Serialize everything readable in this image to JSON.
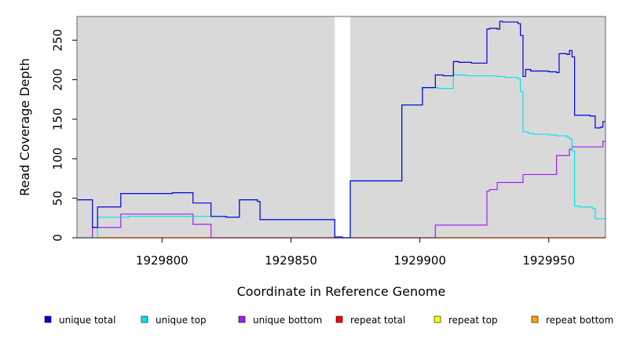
{
  "chart_data": {
    "type": "line",
    "title": "",
    "xlabel": "Coordinate in Reference Genome",
    "ylabel": "Read Coverage Depth",
    "xlim": [
      1929767,
      1929972
    ],
    "ylim": [
      0,
      280
    ],
    "x_ticks": [
      1929800,
      1929850,
      1929900,
      1929950
    ],
    "x_tick_labels": [
      "1929800",
      "1929850",
      "1929900",
      "1929950"
    ],
    "y_ticks": [
      0,
      50,
      100,
      150,
      200,
      250
    ],
    "y_tick_labels": [
      "0",
      "50",
      "100",
      "150",
      "200",
      "250"
    ],
    "grid": false,
    "legend_placement": "bottom",
    "background_color": "#d9d9d9",
    "gap_region": {
      "start": 1929867,
      "end": 1929873,
      "color": "#ffffff"
    },
    "series": [
      {
        "name": "unique total",
        "color": "#0000dd",
        "points": [
          [
            1929767,
            48
          ],
          [
            1929773,
            48
          ],
          [
            1929773,
            13
          ],
          [
            1929775,
            13
          ],
          [
            1929775,
            39
          ],
          [
            1929784,
            39
          ],
          [
            1929784,
            56
          ],
          [
            1929804,
            56
          ],
          [
            1929804,
            57
          ],
          [
            1929812,
            57
          ],
          [
            1929812,
            44
          ],
          [
            1929819,
            44
          ],
          [
            1929819,
            27
          ],
          [
            1929825,
            27
          ],
          [
            1929825,
            26
          ],
          [
            1929830,
            26
          ],
          [
            1929830,
            48
          ],
          [
            1929837,
            48
          ],
          [
            1929837,
            46
          ],
          [
            1929838,
            46
          ],
          [
            1929838,
            23
          ],
          [
            1929867,
            23
          ],
          [
            1929867,
            1
          ],
          [
            1929870,
            1
          ],
          [
            1929870,
            0
          ],
          [
            1929873,
            0
          ],
          [
            1929873,
            72
          ],
          [
            1929893,
            72
          ],
          [
            1929893,
            168
          ],
          [
            1929901,
            168
          ],
          [
            1929901,
            190
          ],
          [
            1929906,
            190
          ],
          [
            1929906,
            206
          ],
          [
            1929909,
            206
          ],
          [
            1929909,
            205
          ],
          [
            1929913,
            205
          ],
          [
            1929913,
            223
          ],
          [
            1929915,
            223
          ],
          [
            1929915,
            222
          ],
          [
            1929920,
            222
          ],
          [
            1929920,
            221
          ],
          [
            1929926,
            221
          ],
          [
            1929926,
            264
          ],
          [
            1929927,
            264
          ],
          [
            1929927,
            265
          ],
          [
            1929930,
            265
          ],
          [
            1929930,
            264
          ],
          [
            1929931,
            264
          ],
          [
            1929931,
            274
          ],
          [
            1929932,
            274
          ],
          [
            1929932,
            273
          ],
          [
            1929938,
            273
          ],
          [
            1929938,
            271
          ],
          [
            1929939,
            271
          ],
          [
            1929939,
            256
          ],
          [
            1929940,
            256
          ],
          [
            1929940,
            204
          ],
          [
            1929941,
            204
          ],
          [
            1929941,
            213
          ],
          [
            1929943,
            213
          ],
          [
            1929943,
            211
          ],
          [
            1929950,
            211
          ],
          [
            1929950,
            210
          ],
          [
            1929953,
            210
          ],
          [
            1929953,
            209
          ],
          [
            1929954,
            209
          ],
          [
            1929954,
            233
          ],
          [
            1929957,
            233
          ],
          [
            1929957,
            232
          ],
          [
            1929958,
            232
          ],
          [
            1929958,
            237
          ],
          [
            1929959,
            237
          ],
          [
            1929959,
            229
          ],
          [
            1929960,
            229
          ],
          [
            1929960,
            155
          ],
          [
            1929966,
            155
          ],
          [
            1929966,
            154
          ],
          [
            1929968,
            154
          ],
          [
            1929968,
            139
          ],
          [
            1929970,
            139
          ],
          [
            1929970,
            140
          ],
          [
            1929971,
            140
          ],
          [
            1929971,
            147
          ],
          [
            1929972,
            147
          ]
        ]
      },
      {
        "name": "unique top",
        "color": "#00e5ee",
        "points": [
          [
            1929767,
            0
          ],
          [
            1929775,
            0
          ],
          [
            1929775,
            26
          ],
          [
            1929787,
            26
          ],
          [
            1929787,
            27
          ],
          [
            1929824,
            27
          ],
          [
            1929824,
            26
          ],
          [
            1929830,
            26
          ],
          [
            1929830,
            48
          ],
          [
            1929837,
            48
          ],
          [
            1929837,
            46
          ],
          [
            1929838,
            46
          ],
          [
            1929838,
            23
          ],
          [
            1929867,
            23
          ],
          [
            1929867,
            1
          ],
          [
            1929870,
            1
          ],
          [
            1929870,
            0
          ],
          [
            1929873,
            0
          ],
          [
            1929873,
            72
          ],
          [
            1929893,
            72
          ],
          [
            1929893,
            168
          ],
          [
            1929901,
            168
          ],
          [
            1929901,
            190
          ],
          [
            1929907,
            190
          ],
          [
            1929907,
            189
          ],
          [
            1929913,
            189
          ],
          [
            1929913,
            206
          ],
          [
            1929918,
            206
          ],
          [
            1929918,
            205
          ],
          [
            1929930,
            205
          ],
          [
            1929930,
            204
          ],
          [
            1929933,
            204
          ],
          [
            1929933,
            203
          ],
          [
            1929938,
            203
          ],
          [
            1929938,
            201
          ],
          [
            1929939,
            201
          ],
          [
            1929939,
            185
          ],
          [
            1929940,
            185
          ],
          [
            1929940,
            134
          ],
          [
            1929942,
            134
          ],
          [
            1929942,
            132
          ],
          [
            1929944,
            132
          ],
          [
            1929944,
            131
          ],
          [
            1929950,
            131
          ],
          [
            1929950,
            130
          ],
          [
            1929953,
            130
          ],
          [
            1929953,
            129
          ],
          [
            1929957,
            129
          ],
          [
            1929957,
            127
          ],
          [
            1929958,
            127
          ],
          [
            1929958,
            125
          ],
          [
            1929959,
            125
          ],
          [
            1929959,
            110
          ],
          [
            1929960,
            110
          ],
          [
            1929960,
            40
          ],
          [
            1929962,
            40
          ],
          [
            1929962,
            39
          ],
          [
            1929967,
            39
          ],
          [
            1929967,
            37
          ],
          [
            1929968,
            37
          ],
          [
            1929968,
            24
          ],
          [
            1929972,
            24
          ]
        ]
      },
      {
        "name": "unique bottom",
        "color": "#a020f0",
        "points": [
          [
            1929767,
            0
          ],
          [
            1929773,
            0
          ],
          [
            1929773,
            13
          ],
          [
            1929784,
            13
          ],
          [
            1929784,
            30
          ],
          [
            1929812,
            30
          ],
          [
            1929812,
            17
          ],
          [
            1929819,
            17
          ],
          [
            1929819,
            0
          ],
          [
            1929906,
            0
          ],
          [
            1929906,
            16
          ],
          [
            1929926,
            16
          ],
          [
            1929926,
            59
          ],
          [
            1929927,
            59
          ],
          [
            1929927,
            61
          ],
          [
            1929930,
            61
          ],
          [
            1929930,
            70
          ],
          [
            1929940,
            70
          ],
          [
            1929940,
            80
          ],
          [
            1929953,
            80
          ],
          [
            1929953,
            104
          ],
          [
            1929958,
            104
          ],
          [
            1929958,
            112
          ],
          [
            1929959,
            112
          ],
          [
            1929959,
            115
          ],
          [
            1929971,
            115
          ],
          [
            1929971,
            122
          ],
          [
            1929972,
            122
          ]
        ]
      },
      {
        "name": "repeat total",
        "color": "#ff0000",
        "points": [
          [
            1929767,
            0
          ],
          [
            1929972,
            0
          ]
        ]
      },
      {
        "name": "repeat top",
        "color": "#ffff00",
        "points": [
          [
            1929767,
            0
          ],
          [
            1929972,
            0
          ]
        ]
      },
      {
        "name": "repeat bottom",
        "color": "#ffa500",
        "points": [
          [
            1929767,
            0
          ],
          [
            1929972,
            0
          ]
        ]
      }
    ]
  }
}
